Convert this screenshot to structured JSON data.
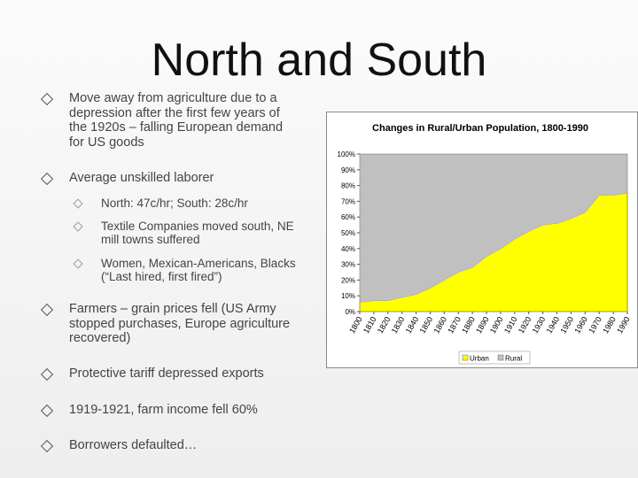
{
  "slide": {
    "title": "North and South",
    "bullets": [
      {
        "text": "Move away from agriculture due to a depression after the first few years of the 1920s – falling European demand for US goods"
      },
      {
        "text": "Average unskilled laborer",
        "items": [
          "North:  47c/hr;  South: 28c/hr",
          "Textile Companies moved south, NE mill towns suffered",
          "Women, Mexican-Americans, Blacks (“Last hired, first fired”)"
        ]
      },
      {
        "text": "Farmers – grain prices fell (US Army stopped purchases, Europe agriculture recovered)"
      },
      {
        "text": "Protective tariff depressed exports"
      },
      {
        "text": "1919-1921, farm income fell 60%"
      },
      {
        "text": "Borrowers defaulted…"
      }
    ]
  },
  "chart_data": {
    "type": "stacked-area",
    "title": "Changes in Rural/Urban Population, 1800-1990",
    "x": [
      1800,
      1810,
      1820,
      1830,
      1840,
      1850,
      1860,
      1870,
      1880,
      1890,
      1900,
      1910,
      1920,
      1930,
      1940,
      1950,
      1960,
      1970,
      1980,
      1990
    ],
    "xlim": [
      1800,
      1990
    ],
    "xticks": [
      1800,
      1810,
      1820,
      1830,
      1840,
      1850,
      1860,
      1870,
      1880,
      1890,
      1900,
      1910,
      1920,
      1930,
      1940,
      1950,
      1960,
      1970,
      1980,
      1990
    ],
    "ylim": [
      0,
      100
    ],
    "yticks": [
      {
        "value": 0,
        "label": "0%"
      },
      {
        "value": 10,
        "label": "10%"
      },
      {
        "value": 20,
        "label": "20%"
      },
      {
        "value": 30,
        "label": "30%"
      },
      {
        "value": 40,
        "label": "40%"
      },
      {
        "value": 50,
        "label": "50%"
      },
      {
        "value": 60,
        "label": "60%"
      },
      {
        "value": 70,
        "label": "70%"
      },
      {
        "value": 80,
        "label": "80%"
      },
      {
        "value": 90,
        "label": "90%"
      },
      {
        "value": 100,
        "label": "100%"
      }
    ],
    "series": [
      {
        "name": "Urban",
        "color": "#ffff00",
        "values": [
          6,
          7,
          7,
          9,
          11,
          15,
          20,
          25,
          28,
          35,
          40,
          46,
          51,
          55,
          56,
          59,
          63,
          74,
          74,
          75
        ]
      },
      {
        "name": "Rural",
        "color": "#c0c0c0",
        "values": [
          94,
          93,
          93,
          91,
          89,
          85,
          80,
          75,
          72,
          65,
          60,
          54,
          49,
          45,
          44,
          41,
          37,
          26,
          26,
          25
        ]
      }
    ]
  }
}
